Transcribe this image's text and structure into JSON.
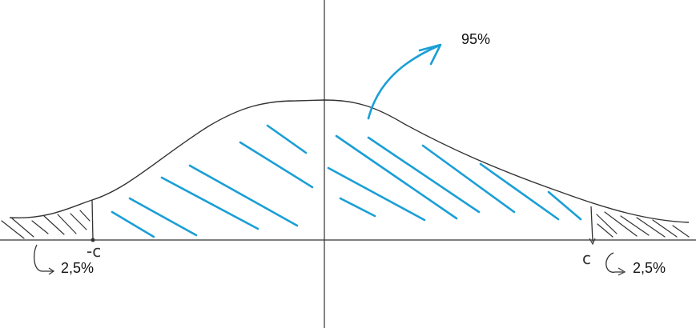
{
  "labels": {
    "central_area": "95%",
    "left_tail": "2,5%",
    "right_tail": "2,5%",
    "left_critical": "-c",
    "right_critical": "c"
  },
  "colors": {
    "curve": "#333333",
    "central_hatch": "#1a9fd6",
    "tail_hatch": "#333333",
    "arrow": "#1a9fd6"
  }
}
